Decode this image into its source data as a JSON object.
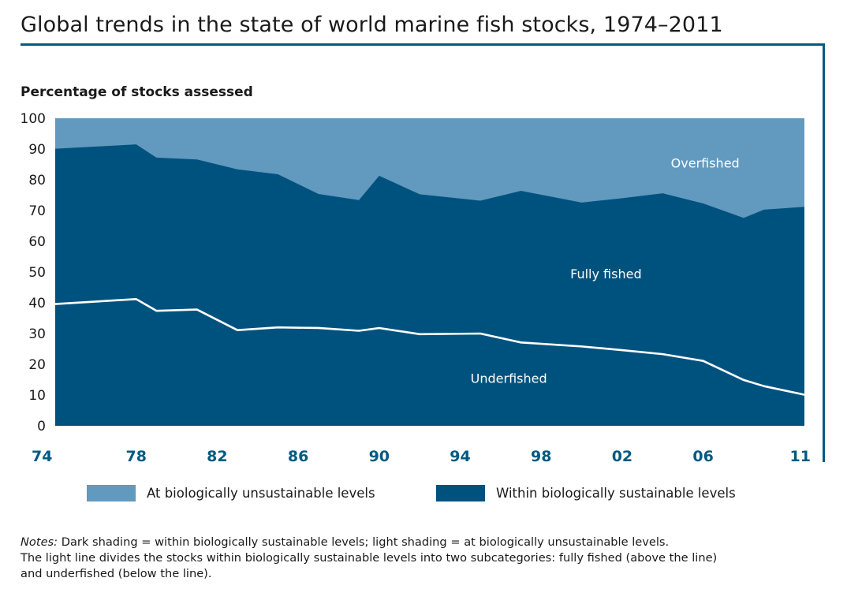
{
  "title": "Global trends in the state of world marine fish stocks, 1974–2011",
  "colors": {
    "overfished": "#6299bf",
    "sustainable": "#00527e",
    "line": "#ffffff",
    "accent": "#005a82"
  },
  "legend": [
    {
      "label": "At biologically unsustainable levels",
      "color": "#6299bf"
    },
    {
      "label": "Within biologically sustainable levels",
      "color": "#00527e"
    }
  ],
  "notes": {
    "lead": "Notes:",
    "line1": " Dark shading = within biologically sustainable levels; light shading = at biologically unsustainable levels.",
    "line2": "The light line divides the stocks within biologically sustainable levels into two subcategories: fully fished (above the line)",
    "line3": "and underfished (below the line)."
  },
  "chart_data": {
    "type": "area",
    "ylabel": "Percentage of stocks assessed",
    "ylim": [
      0,
      100
    ],
    "xlim": [
      1974,
      2011
    ],
    "yticks": [
      0,
      10,
      20,
      30,
      40,
      50,
      60,
      70,
      80,
      90,
      100
    ],
    "xticks": [
      {
        "value": 1974,
        "label": "74"
      },
      {
        "value": 1978,
        "label": "78"
      },
      {
        "value": 1982,
        "label": "82"
      },
      {
        "value": 1986,
        "label": "86"
      },
      {
        "value": 1990,
        "label": "90"
      },
      {
        "value": 1994,
        "label": "94"
      },
      {
        "value": 1998,
        "label": "98"
      },
      {
        "value": 2002,
        "label": "02"
      },
      {
        "value": 2006,
        "label": "06"
      },
      {
        "value": 2011,
        "label": "11"
      }
    ],
    "series": [
      {
        "name": "Overfished",
        "boundary": "top",
        "x": [
          1974,
          2011
        ],
        "values": [
          100,
          100
        ]
      },
      {
        "name": "Fully fished",
        "x": [
          1974,
          1978,
          1979,
          1981,
          1983,
          1985,
          1987,
          1989,
          1990,
          1992,
          1995,
          1997,
          2000,
          2002,
          2004,
          2006,
          2008,
          2009,
          2011
        ],
        "values": [
          90.1,
          91.5,
          87.2,
          86.6,
          83.4,
          81.8,
          75.4,
          73.4,
          81.3,
          75.3,
          73.2,
          76.4,
          72.6,
          74.0,
          75.6,
          72.3,
          67.6,
          70.3,
          71.2
        ]
      },
      {
        "name": "Underfished",
        "x": [
          1974,
          1978,
          1979,
          1981,
          1983,
          1985,
          1987,
          1989,
          1990,
          1992,
          1995,
          1997,
          2000,
          2002,
          2004,
          2006,
          2008,
          2009,
          2011
        ],
        "values": [
          39.6,
          41.2,
          37.4,
          37.8,
          31.1,
          32.0,
          31.8,
          30.9,
          31.8,
          29.8,
          30.0,
          27.1,
          25.8,
          24.6,
          23.3,
          21.1,
          14.9,
          12.9,
          10.1
        ]
      }
    ],
    "annotations": [
      {
        "text": "Overfished",
        "x": 2006.1,
        "y": 84
      },
      {
        "text": "Fully fished",
        "x": 2001.2,
        "y": 48
      },
      {
        "text": "Underfished",
        "x": 1996.4,
        "y": 14
      }
    ]
  }
}
